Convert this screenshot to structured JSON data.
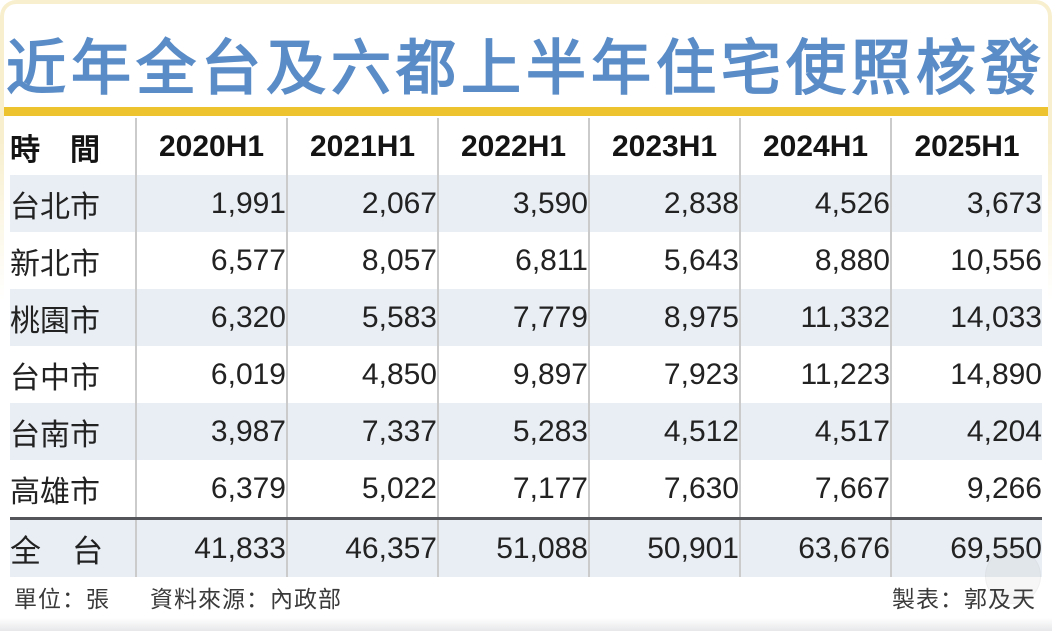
{
  "title": "近年全台及六都上半年住宅使照核發",
  "colors": {
    "title_blue": "#5a8cc7",
    "gold_bar": "#edc430",
    "row_alt_bg": "#e9eef4",
    "divider_gray": "#cbcbcb",
    "total_separator": "#54555a"
  },
  "chart_data": {
    "type": "table",
    "title": "近年全台及六都上半年住宅使照核發",
    "unit": "張",
    "columns": [
      "時　間",
      "2020H1",
      "2021H1",
      "2022H1",
      "2023H1",
      "2024H1",
      "2025H1"
    ],
    "rows": [
      {
        "label": "台北市",
        "values": [
          "1,991",
          "2,067",
          "3,590",
          "2,838",
          "4,526",
          "3,673"
        ]
      },
      {
        "label": "新北市",
        "values": [
          "6,577",
          "8,057",
          "6,811",
          "5,643",
          "8,880",
          "10,556"
        ]
      },
      {
        "label": "桃園市",
        "values": [
          "6,320",
          "5,583",
          "7,779",
          "8,975",
          "11,332",
          "14,033"
        ]
      },
      {
        "label": "台中市",
        "values": [
          "6,019",
          "4,850",
          "9,897",
          "7,923",
          "11,223",
          "14,890"
        ]
      },
      {
        "label": "台南市",
        "values": [
          "3,987",
          "7,337",
          "5,283",
          "4,512",
          "4,517",
          "4,204"
        ]
      },
      {
        "label": "高雄市",
        "values": [
          "6,379",
          "5,022",
          "7,177",
          "7,630",
          "7,667",
          "9,266"
        ]
      }
    ],
    "total_row": {
      "label": "全　台",
      "values": [
        "41,833",
        "46,357",
        "51,088",
        "50,901",
        "63,676",
        "69,550"
      ]
    }
  },
  "footer": {
    "unit": "單位：張",
    "source": "資料來源：內政部",
    "credit": "製表：郭及天"
  }
}
